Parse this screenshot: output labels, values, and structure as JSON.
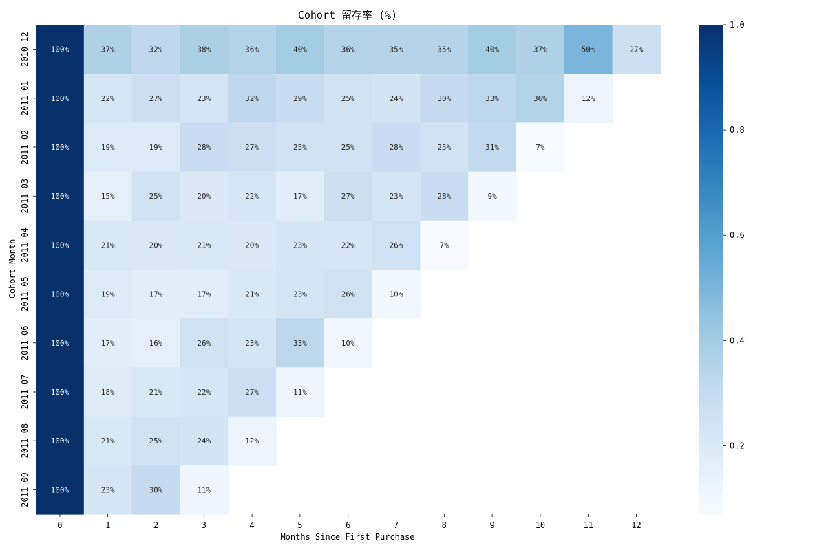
{
  "chart_data": {
    "type": "heatmap",
    "title": "Cohort 留存率 (%)",
    "xlabel": "Months Since First Purchase",
    "ylabel": "Cohort Month",
    "x_categories": [
      "0",
      "1",
      "2",
      "3",
      "4",
      "5",
      "6",
      "7",
      "8",
      "9",
      "10",
      "11",
      "12"
    ],
    "y_categories": [
      "2010-12",
      "2011-01",
      "2011-02",
      "2011-03",
      "2011-04",
      "2011-05",
      "2011-06",
      "2011-07",
      "2011-08",
      "2011-09"
    ],
    "values": [
      [
        1.0,
        0.37,
        0.32,
        0.38,
        0.36,
        0.4,
        0.36,
        0.35,
        0.35,
        0.4,
        0.37,
        0.5,
        0.27
      ],
      [
        1.0,
        0.22,
        0.27,
        0.23,
        0.32,
        0.29,
        0.25,
        0.24,
        0.3,
        0.33,
        0.36,
        0.12
      ],
      [
        1.0,
        0.19,
        0.19,
        0.28,
        0.27,
        0.25,
        0.25,
        0.28,
        0.25,
        0.31,
        0.07
      ],
      [
        1.0,
        0.15,
        0.25,
        0.2,
        0.22,
        0.17,
        0.27,
        0.23,
        0.28,
        0.09
      ],
      [
        1.0,
        0.21,
        0.2,
        0.21,
        0.2,
        0.23,
        0.22,
        0.26,
        0.07
      ],
      [
        1.0,
        0.19,
        0.17,
        0.17,
        0.21,
        0.23,
        0.26,
        0.1
      ],
      [
        1.0,
        0.17,
        0.16,
        0.26,
        0.23,
        0.33,
        0.1
      ],
      [
        1.0,
        0.18,
        0.21,
        0.22,
        0.27,
        0.11
      ],
      [
        1.0,
        0.21,
        0.25,
        0.24,
        0.12
      ],
      [
        1.0,
        0.23,
        0.3,
        0.11
      ]
    ],
    "annotations": [
      [
        "100%",
        "37%",
        "32%",
        "38%",
        "36%",
        "40%",
        "36%",
        "35%",
        "35%",
        "40%",
        "37%",
        "50%",
        "27%"
      ],
      [
        "100%",
        "22%",
        "27%",
        "23%",
        "32%",
        "29%",
        "25%",
        "24%",
        "30%",
        "33%",
        "36%",
        "12%"
      ],
      [
        "100%",
        "19%",
        "19%",
        "28%",
        "27%",
        "25%",
        "25%",
        "28%",
        "25%",
        "31%",
        "7%"
      ],
      [
        "100%",
        "15%",
        "25%",
        "20%",
        "22%",
        "17%",
        "27%",
        "23%",
        "28%",
        "9%"
      ],
      [
        "100%",
        "21%",
        "20%",
        "21%",
        "20%",
        "23%",
        "22%",
        "26%",
        "7%"
      ],
      [
        "100%",
        "19%",
        "17%",
        "17%",
        "21%",
        "23%",
        "26%",
        "10%"
      ],
      [
        "100%",
        "17%",
        "16%",
        "26%",
        "23%",
        "33%",
        "10%"
      ],
      [
        "100%",
        "18%",
        "21%",
        "22%",
        "27%",
        "11%"
      ],
      [
        "100%",
        "21%",
        "25%",
        "24%",
        "12%"
      ],
      [
        "100%",
        "23%",
        "30%",
        "11%"
      ]
    ],
    "colormap": "Blues",
    "vmin": 0.07,
    "vmax": 1.0,
    "colorbar_ticks": [
      "0.2",
      "0.4",
      "0.6",
      "0.8",
      "1.0"
    ],
    "colorbar_tick_values": [
      0.2,
      0.4,
      0.6,
      0.8,
      1.0
    ]
  }
}
